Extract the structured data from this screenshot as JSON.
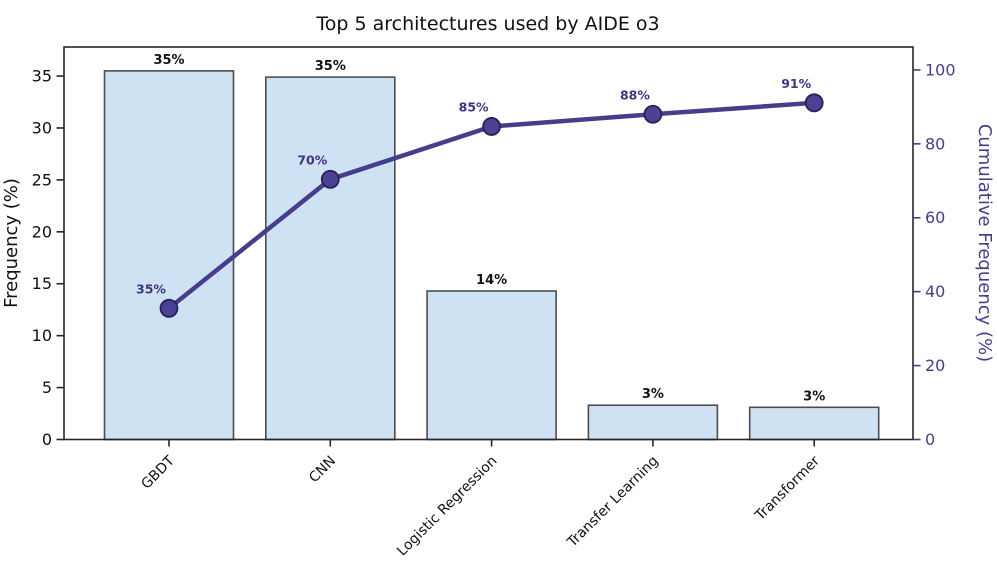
{
  "chart_data": {
    "type": "pareto (bar + cumulative line)",
    "title": "Top 5 architectures used by AIDE o3",
    "categories": [
      "GBDT",
      "CNN",
      "Logistic Regression",
      "Transfer Learning",
      "Transformer"
    ],
    "series": [
      {
        "name": "Frequency",
        "type": "bar",
        "values": [
          35.5,
          34.9,
          14.3,
          3.3,
          3.1
        ],
        "value_labels": [
          "35%",
          "35%",
          "14%",
          "3%",
          "3%"
        ]
      },
      {
        "name": "Cumulative Frequency",
        "type": "line",
        "values": [
          35.5,
          70.4,
          84.7,
          88.0,
          91.1
        ],
        "value_labels": [
          "35%",
          "70%",
          "85%",
          "88%",
          "91%"
        ]
      }
    ],
    "ylabel_left": "Frequency (%)",
    "ylabel_right": "Cumulative Frequency (%)",
    "yticks_left": [
      0,
      5,
      10,
      15,
      20,
      25,
      30,
      35
    ],
    "yticks_right": [
      0,
      20,
      40,
      60,
      80,
      100
    ],
    "ylim_left": [
      0,
      37.8
    ],
    "ylim_right": [
      0,
      106.2
    ],
    "grid": false,
    "legend": "none"
  },
  "colors": {
    "bar_fill": "#cfe2f3",
    "bar_edge": "#4d4d4d",
    "line": "#483d8b",
    "marker_fill": "#4c4192",
    "marker_edge": "#26215a",
    "axis": "#262626",
    "text_dark": "#111111",
    "purple_text": "#3f3580"
  }
}
